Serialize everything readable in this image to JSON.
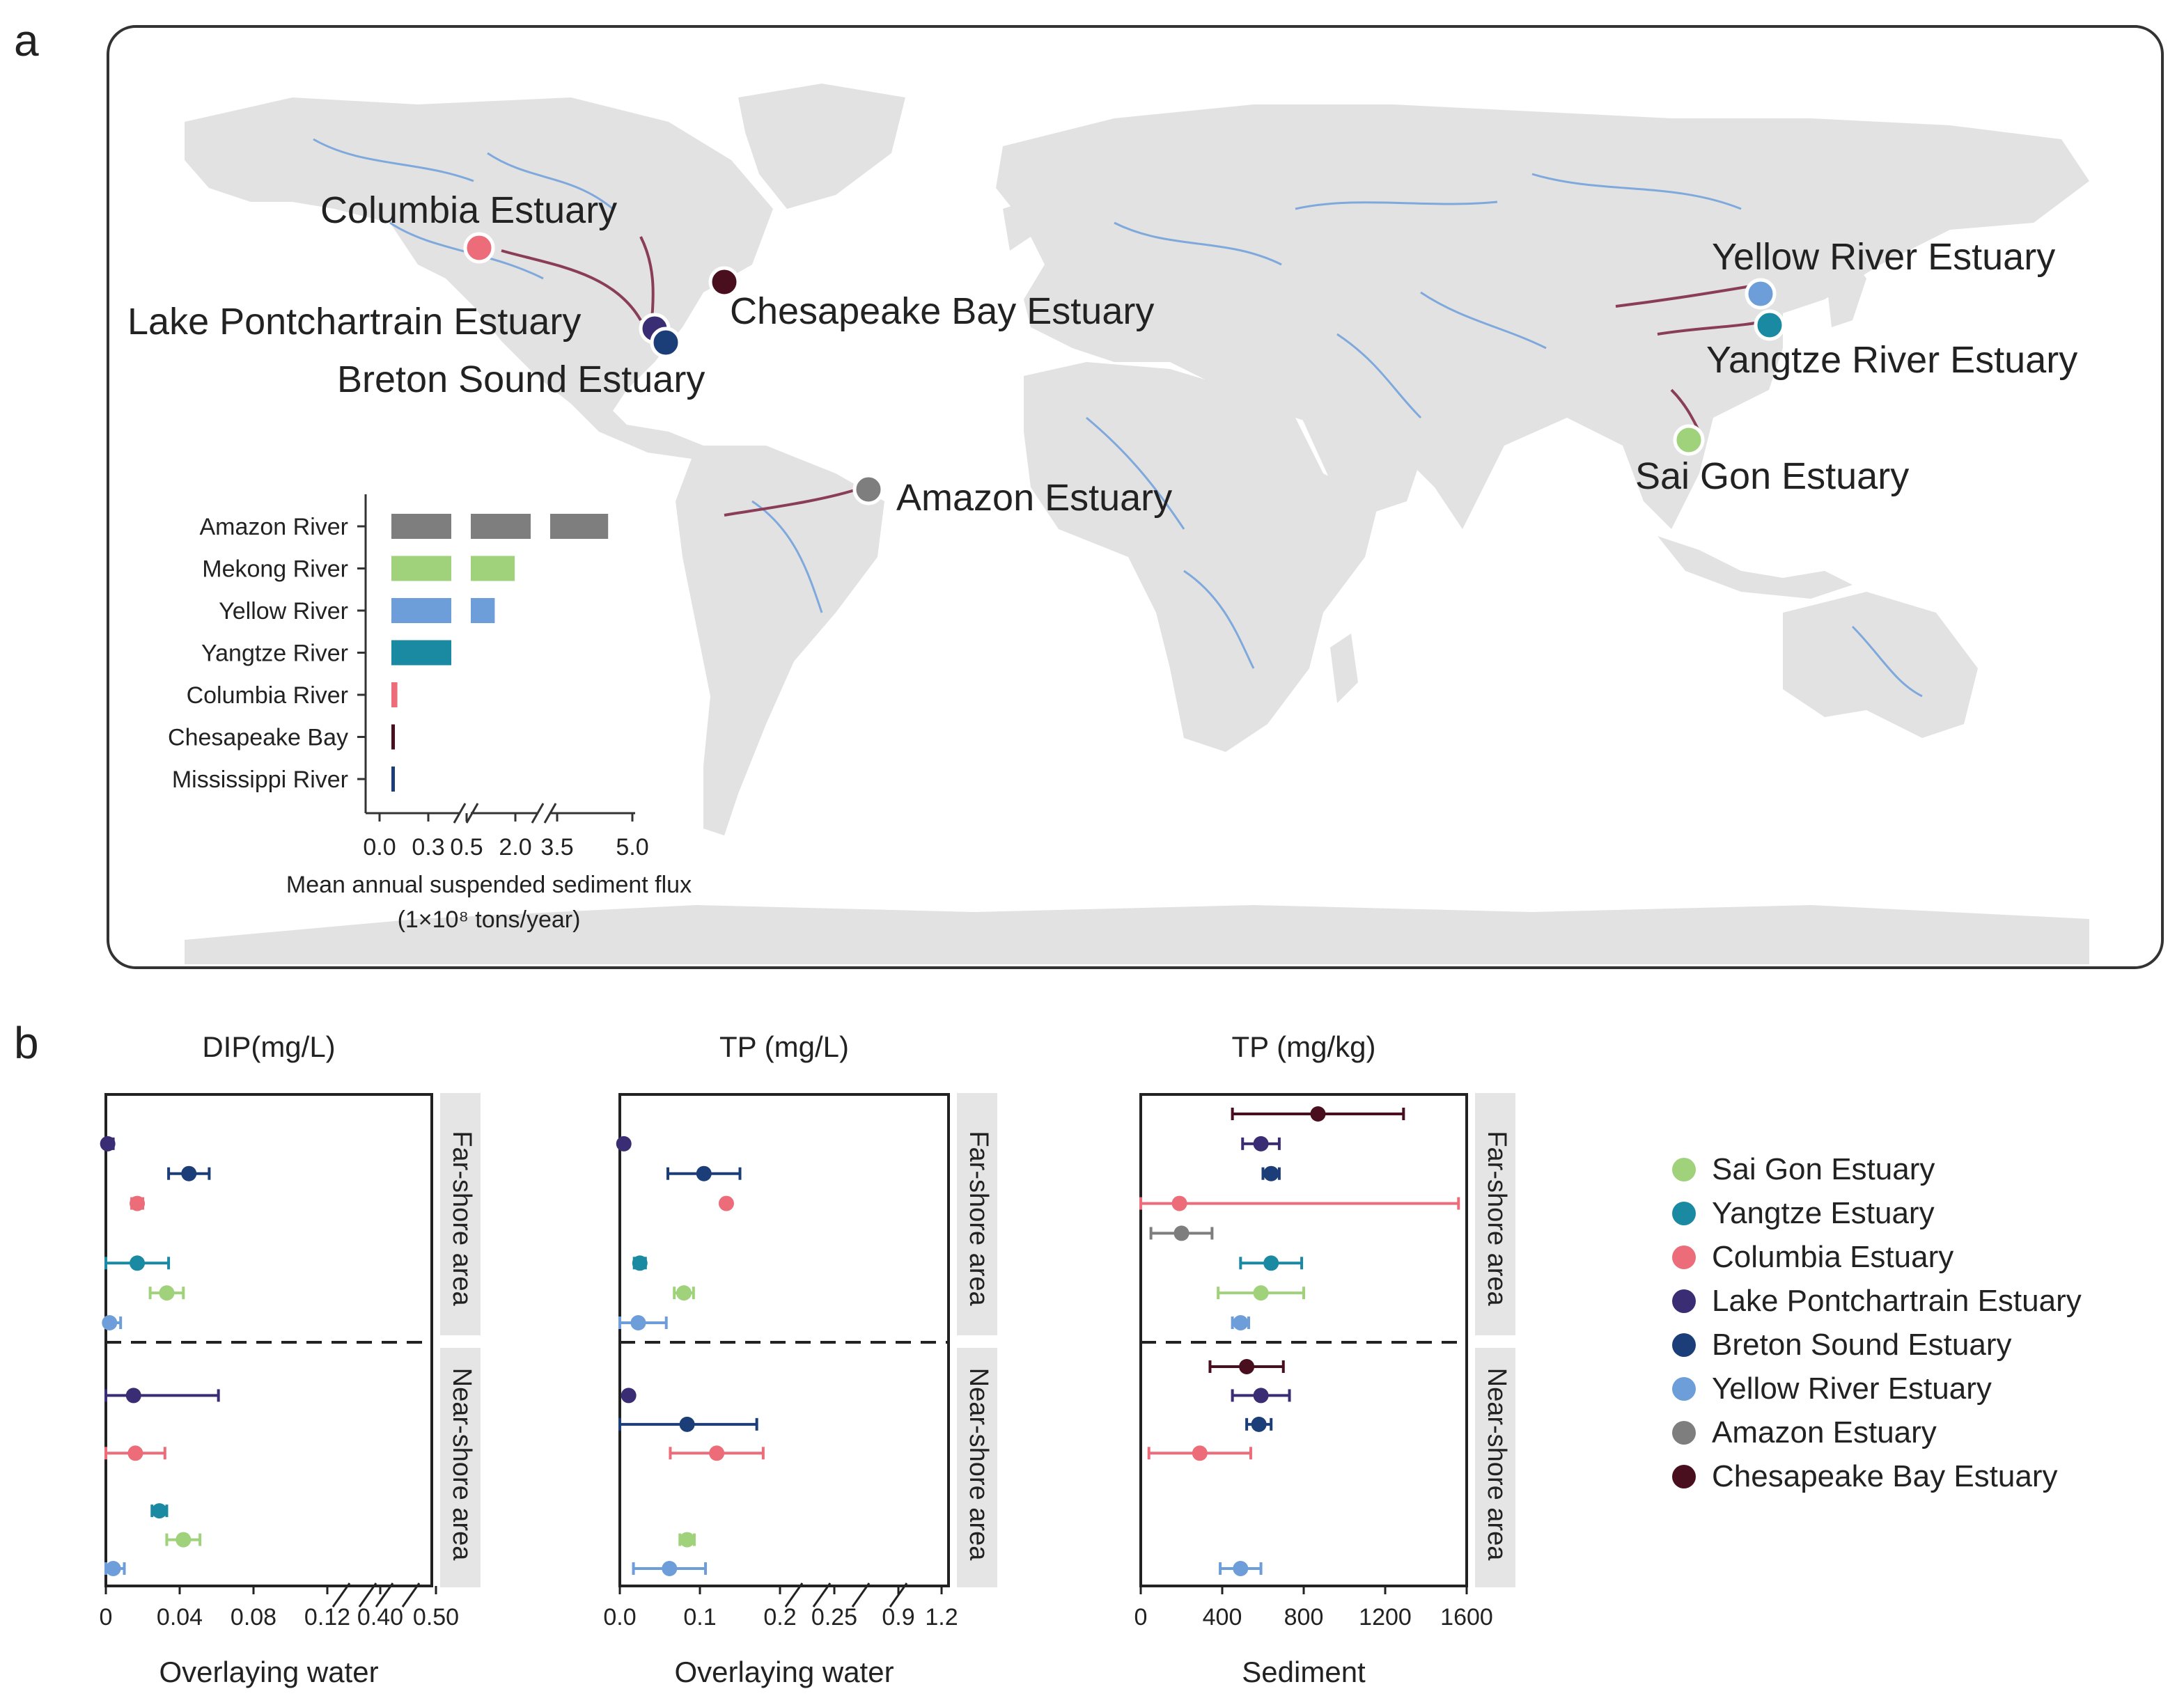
{
  "panel_labels": {
    "a": "a",
    "b": "b"
  },
  "colors": {
    "map_land": "#e2e2e2",
    "rivers": "#7fa9dc",
    "highlight_rivers": "#8a3d57",
    "saigon": "#9fd27a",
    "yangtze": "#1a8aa2",
    "columbia": "#ec6d79",
    "pontchartrain": "#3b2d74",
    "breton": "#1b3e78",
    "yellow": "#6d9ed9",
    "amazon": "#7e7e7e",
    "chesapeake": "#4a0f1f",
    "divider": "#222222",
    "facet_strip": "#e5e5e5"
  },
  "map": {
    "estuaries": [
      {
        "key": "columbia",
        "label": "Columbia Estuary"
      },
      {
        "key": "chesapeake",
        "label": "Chesapeake Bay Estuary"
      },
      {
        "key": "pontchartrain",
        "label": "Lake Pontchartrain Estuary"
      },
      {
        "key": "breton",
        "label": "Breton Sound Estuary"
      },
      {
        "key": "amazon",
        "label": "Amazon Estuary"
      },
      {
        "key": "yellow",
        "label": "Yellow River Estuary"
      },
      {
        "key": "yangtze",
        "label": "Yangtze River Estuary"
      },
      {
        "key": "saigon",
        "label": "Sai Gon Estuary"
      }
    ]
  },
  "chart_data": [
    {
      "type": "bar",
      "orientation": "horizontal",
      "categories": [
        "Amazon River",
        "Mekong River",
        "Yellow River",
        "Yangtze River",
        "Columbia River",
        "Chesapeake Bay",
        "Mississippi River"
      ],
      "values": [
        4.6,
        1.6,
        1.1,
        0.5,
        0.05,
        0.01,
        0.01
      ],
      "xlabel_line1": "Mean annual suspended sediment flux",
      "xlabel_line2": "(1×10⁸ tons/year)",
      "ticks": [
        "0.0",
        "0.3",
        "0.5",
        "2.0",
        "3.5",
        "5.0"
      ],
      "axis_breaks": [
        "0.3–0.5",
        "2.0–3.5"
      ]
    },
    {
      "type": "scatter",
      "title": "DIP(mg/L)",
      "xlabel": "Overlaying water",
      "ticks": [
        "0",
        "0.04",
        "0.08",
        "0.12",
        "0.40",
        "0.50"
      ],
      "facets": [
        "Far-shore area",
        "Near-shore area"
      ],
      "points": [
        {
          "estuary": "pontchartrain",
          "area": "far",
          "mean": 0.001,
          "err": 0.003
        },
        {
          "estuary": "breton",
          "area": "far",
          "mean": 0.045,
          "err": 0.011
        },
        {
          "estuary": "columbia",
          "area": "far",
          "mean": 0.017,
          "err": 0.003
        },
        {
          "estuary": "yangtze",
          "area": "far",
          "mean": 0.017,
          "err": 0.017
        },
        {
          "estuary": "saigon",
          "area": "far",
          "mean": 0.033,
          "err": 0.009
        },
        {
          "estuary": "yellow",
          "area": "far",
          "mean": 0.002,
          "err": 0.006
        },
        {
          "estuary": "pontchartrain",
          "area": "near",
          "mean": 0.015,
          "err": 0.046
        },
        {
          "estuary": "columbia",
          "area": "near",
          "mean": 0.016,
          "err": 0.016
        },
        {
          "estuary": "yangtze",
          "area": "near",
          "mean": 0.029,
          "err": 0.004
        },
        {
          "estuary": "saigon",
          "area": "near",
          "mean": 0.042,
          "err": 0.009
        },
        {
          "estuary": "yellow",
          "area": "near",
          "mean": 0.004,
          "err": 0.006
        }
      ]
    },
    {
      "type": "scatter",
      "title": "TP (mg/L)",
      "xlabel": "Overlaying water",
      "ticks": [
        "0.0",
        "0.1",
        "0.2",
        "0.25",
        "0.9",
        "1.2"
      ],
      "facets": [
        "Far-shore area",
        "Near-shore area"
      ],
      "points": [
        {
          "estuary": "pontchartrain",
          "area": "far",
          "mean": 0.005,
          "err": 0.003
        },
        {
          "estuary": "breton",
          "area": "far",
          "mean": 0.105,
          "err": 0.045
        },
        {
          "estuary": "columbia",
          "area": "far",
          "mean": 0.133,
          "err": 0.004
        },
        {
          "estuary": "yangtze",
          "area": "far",
          "mean": 0.025,
          "err": 0.007
        },
        {
          "estuary": "saigon",
          "area": "far",
          "mean": 0.08,
          "err": 0.012
        },
        {
          "estuary": "yellow",
          "area": "far",
          "mean": 0.023,
          "err": 0.035
        },
        {
          "estuary": "pontchartrain",
          "area": "near",
          "mean": 0.011,
          "err": 0.003
        },
        {
          "estuary": "columbia",
          "area": "near",
          "mean": 0.121,
          "err": 0.058
        },
        {
          "estuary": "breton",
          "area": "near",
          "mean": 0.084,
          "err": 0.087
        },
        {
          "estuary": "saigon",
          "area": "near",
          "mean": 0.084,
          "err": 0.009
        },
        {
          "estuary": "yellow",
          "area": "near",
          "mean": 0.062,
          "err": 0.045
        }
      ]
    },
    {
      "type": "scatter",
      "title": "TP (mg/kg)",
      "xlabel": "Sediment",
      "ticks": [
        "0",
        "400",
        "800",
        "1200",
        "1600"
      ],
      "xlim": [
        0,
        1600
      ],
      "facets": [
        "Far-shore area",
        "Near-shore area"
      ],
      "points": [
        {
          "estuary": "chesapeake",
          "area": "far",
          "mean": 870,
          "err": 420
        },
        {
          "estuary": "pontchartrain",
          "area": "far",
          "mean": 590,
          "err": 90
        },
        {
          "estuary": "breton",
          "area": "far",
          "mean": 640,
          "err": 40
        },
        {
          "estuary": "columbia",
          "area": "far",
          "mean": 190,
          "err": 1370
        },
        {
          "estuary": "amazon",
          "area": "far",
          "mean": 200,
          "err": 150
        },
        {
          "estuary": "yangtze",
          "area": "far",
          "mean": 640,
          "err": 150
        },
        {
          "estuary": "saigon",
          "area": "far",
          "mean": 590,
          "err": 210
        },
        {
          "estuary": "yellow",
          "area": "far",
          "mean": 490,
          "err": 40
        },
        {
          "estuary": "chesapeake",
          "area": "near",
          "mean": 520,
          "err": 180
        },
        {
          "estuary": "pontchartrain",
          "area": "near",
          "mean": 590,
          "err": 140
        },
        {
          "estuary": "breton",
          "area": "near",
          "mean": 580,
          "err": 60
        },
        {
          "estuary": "columbia",
          "area": "near",
          "mean": 290,
          "err": 250
        },
        {
          "estuary": "yellow",
          "area": "near",
          "mean": 490,
          "err": 100
        }
      ]
    }
  ],
  "legend": [
    {
      "key": "saigon",
      "label": "Sai Gon Estuary"
    },
    {
      "key": "yangtze",
      "label": "Yangtze Estuary"
    },
    {
      "key": "columbia",
      "label": "Columbia Estuary"
    },
    {
      "key": "pontchartrain",
      "label": "Lake Pontchartrain Estuary"
    },
    {
      "key": "breton",
      "label": "Breton Sound Estuary"
    },
    {
      "key": "yellow",
      "label": "Yellow River Estuary"
    },
    {
      "key": "amazon",
      "label": "Amazon Estuary"
    },
    {
      "key": "chesapeake",
      "label": "Chesapeake Bay Estuary"
    }
  ]
}
